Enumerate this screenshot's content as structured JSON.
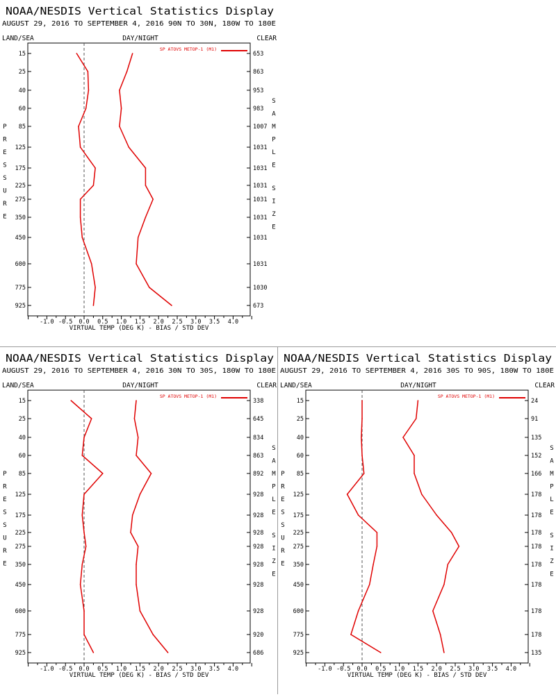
{
  "header": {
    "title": "NOAA/NESDIS Vertical Statistics Display",
    "label_left": "LAND/SEA",
    "label_center": "DAY/NIGHT",
    "label_right": "CLEAR",
    "x_axis_label": "VIRTUAL TEMP (DEG K) - BIAS / STD DEV",
    "y_axis_word": "PRESSURE",
    "right_axis_word": "SAMPLE SIZE"
  },
  "colors": {
    "series": "#e00000",
    "axes": "#000000",
    "zero_line": "#555555",
    "divider": "#9a9a9a"
  },
  "chart_data": [
    {
      "type": "line",
      "subtitle": "AUGUST 29, 2016 TO SEPTEMBER 4, 2016  90N TO 30N, 180W TO 180E",
      "pressure_levels": [
        15,
        25,
        40,
        60,
        85,
        125,
        175,
        225,
        275,
        350,
        450,
        600,
        775,
        925
      ],
      "sample_size": [
        653,
        863,
        953,
        983,
        1007,
        1031,
        1031,
        1031,
        1031,
        1031,
        1031,
        1031,
        1030,
        673
      ],
      "series": [
        {
          "name": "SP ATOVS METOP-1 (M1)",
          "bias": [
            -0.2,
            0.1,
            0.12,
            0.05,
            -0.15,
            -0.1,
            0.3,
            0.25,
            -0.1,
            -0.1,
            -0.05,
            0.2,
            0.3,
            0.25
          ],
          "std_dev": [
            1.3,
            1.15,
            0.95,
            1.0,
            0.95,
            1.2,
            1.65,
            1.65,
            1.85,
            1.65,
            1.45,
            1.4,
            1.75,
            2.35
          ]
        }
      ],
      "xlim": [
        -1.5,
        4.5
      ],
      "x_ticks": [
        "-1.0",
        "-0.5",
        "0.0",
        "0.5",
        "1.0",
        "1.5",
        "2.0",
        "2.5",
        "3.0",
        "3.5",
        "4.0"
      ],
      "legend": "top-right"
    },
    {
      "type": "line",
      "subtitle": "AUGUST 29, 2016 TO SEPTEMBER 4, 2016  30N TO 30S, 180W TO 180E",
      "pressure_levels": [
        15,
        25,
        40,
        60,
        85,
        125,
        175,
        225,
        275,
        350,
        450,
        600,
        775,
        925
      ],
      "sample_size": [
        338,
        645,
        834,
        863,
        892,
        928,
        928,
        928,
        928,
        928,
        928,
        928,
        920,
        686
      ],
      "series": [
        {
          "name": "SP ATOVS METOP-1 (M1)",
          "bias": [
            -0.35,
            0.2,
            0.0,
            -0.05,
            0.5,
            0.0,
            -0.05,
            0.0,
            0.05,
            -0.05,
            -0.1,
            0.0,
            0.0,
            0.25
          ],
          "std_dev": [
            1.4,
            1.35,
            1.45,
            1.4,
            1.8,
            1.5,
            1.3,
            1.25,
            1.45,
            1.4,
            1.4,
            1.5,
            1.85,
            2.25
          ]
        }
      ],
      "xlim": [
        -1.5,
        4.5
      ],
      "x_ticks": [
        "-1.0",
        "-0.5",
        "0.0",
        "0.5",
        "1.0",
        "1.5",
        "2.0",
        "2.5",
        "3.0",
        "3.5",
        "4.0"
      ],
      "legend": "top-right"
    },
    {
      "type": "line",
      "subtitle": "AUGUST 29, 2016 TO SEPTEMBER 4, 2016  30S TO 90S, 180W TO 180E",
      "pressure_levels": [
        15,
        25,
        40,
        60,
        85,
        125,
        175,
        225,
        275,
        350,
        450,
        600,
        775,
        925
      ],
      "sample_size": [
        24,
        91,
        135,
        152,
        166,
        178,
        178,
        178,
        178,
        178,
        178,
        178,
        178,
        135
      ],
      "series": [
        {
          "name": "SP ATOVS METOP-1 (M1)",
          "bias": [
            0.0,
            0.0,
            -0.02,
            0.0,
            0.05,
            -0.4,
            -0.1,
            0.4,
            0.4,
            0.3,
            0.2,
            -0.1,
            -0.3,
            0.5
          ],
          "std_dev": [
            1.5,
            1.45,
            1.1,
            1.4,
            1.4,
            1.6,
            2.0,
            2.4,
            2.6,
            2.3,
            2.2,
            1.9,
            2.1,
            2.2
          ]
        }
      ],
      "xlim": [
        -1.5,
        4.5
      ],
      "x_ticks": [
        "-1.0",
        "-0.5",
        "0.0",
        "0.5",
        "1.0",
        "1.5",
        "2.0",
        "2.5",
        "3.0",
        "3.5",
        "4.0"
      ],
      "legend": "top-right"
    }
  ]
}
